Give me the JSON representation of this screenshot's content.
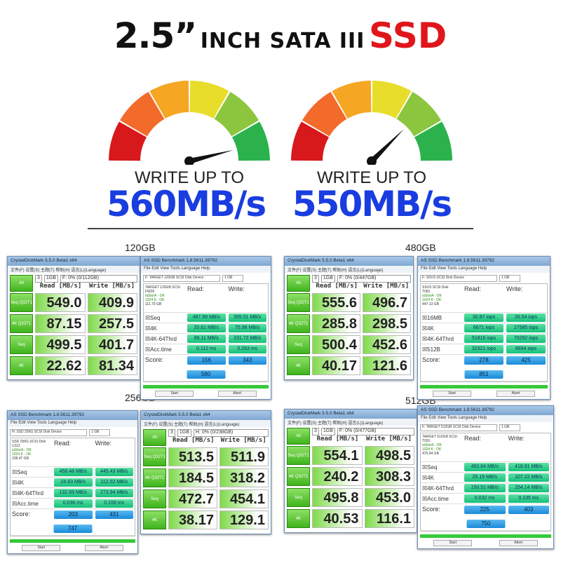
{
  "headline": {
    "size": "2.5”",
    "inch": "INCH SATA III",
    "ssd": "SSD"
  },
  "colors": {
    "accent_red": "#e0161b",
    "speed_blue": "#1a3de0",
    "gauge": [
      "#d7191c",
      "#f26b2a",
      "#f5a623",
      "#e8dd2a",
      "#8cc63f",
      "#2bb24c"
    ]
  },
  "gauges": [
    {
      "label": "WRITE UP TO",
      "speed": "560MB/s",
      "needle_level": 0.92
    },
    {
      "label": "WRITE UP TO",
      "speed": "550MB/s",
      "needle_level": 0.75
    }
  ],
  "captions": [
    "120GB",
    "480GB",
    "256GB",
    "512GB"
  ],
  "cdm": [
    {
      "title": "CrystalDiskMark 5.5.0 Beta1 x64",
      "menu": "文件(F)  设置(S)  主题(T)  帮助(H)  语言(L)(Language)",
      "all": "All",
      "count": "3",
      "size": "1GB",
      "drive": "F: 0% (0/112GB)",
      "read_h": "Read [MB/s]",
      "write_h": "Write [MB/s]",
      "rows": [
        [
          "Seq Q32T1",
          "549.0",
          "409.9"
        ],
        [
          "4K Q32T1",
          "87.15",
          "257.5"
        ],
        [
          "Seq",
          "499.5",
          "401.7"
        ],
        [
          "4K",
          "22.62",
          "81.34"
        ]
      ]
    },
    {
      "title": "CrystalDiskMark 5.5.0 Beta1 x64",
      "menu": "文件(F)  设置(S)  主题(T)  帮助(H)  语言(L)(Language)",
      "all": "All",
      "count": "3",
      "size": "1GB",
      "drive": "F: 0% (0/447GB)",
      "read_h": "Read [MB/s]",
      "write_h": "Write [MB/s]",
      "rows": [
        [
          "Seq Q32T1",
          "555.6",
          "496.7"
        ],
        [
          "4K Q32T1",
          "285.8",
          "298.5"
        ],
        [
          "Seq",
          "500.4",
          "452.6"
        ],
        [
          "4K",
          "40.17",
          "121.6"
        ]
      ]
    },
    {
      "title": "CrystalDiskMark 5.5.0 Beta1 x64",
      "menu": "文件(F)  设置(S)  主题(T)  帮助(H)  语言(L)(Language)",
      "all": "All",
      "count": "3",
      "size": "1GB",
      "drive": "H: 0% (0/238GB)",
      "read_h": "Read [MB/s]",
      "write_h": "Write [MB/s]",
      "rows": [
        [
          "Seq Q32T1",
          "513.5",
          "511.9"
        ],
        [
          "4K Q32T1",
          "184.5",
          "318.2"
        ],
        [
          "Seq",
          "472.7",
          "454.1"
        ],
        [
          "4K",
          "38.17",
          "129.1"
        ]
      ]
    },
    {
      "title": "CrystalDiskMark 5.5.0 Beta1 x64",
      "menu": "文件(F)  设置(S)  主题(T)  帮助(H)  语言(L)(Language)",
      "all": "All",
      "count": "3",
      "size": "1GB",
      "drive": "F: 0% (0/477GB)",
      "read_h": "Read [MB/s]",
      "write_h": "Write [MB/s]",
      "rows": [
        [
          "Seq Q32T1",
          "554.1",
          "498.5"
        ],
        [
          "4K Q32T1",
          "240.2",
          "308.3"
        ],
        [
          "Seq",
          "495.8",
          "453.0"
        ],
        [
          "4K",
          "40.53",
          "116.1"
        ]
      ]
    }
  ],
  "as": [
    {
      "title": "AS SSD Benchmark 1.8.5611.39792",
      "menu": "File  Edit  View  Tools  Language  Help",
      "drive": "F: TARGET 120GB SCSI Disk Device",
      "size": "1 GB",
      "info": [
        "TARGET 120GB SCSI",
        "FW20",
        "iaStorA - OK",
        "1024 K - OK",
        "111.79 GB"
      ],
      "read_h": "Read:",
      "write_h": "Write:",
      "rows": [
        [
          "Seq",
          "487.99 MB/s",
          "355.51 MB/s"
        ],
        [
          "4K",
          "20.61 MB/s",
          "75.98 MB/s"
        ],
        [
          "4K-64Thrd",
          "86.11 MB/s",
          "231.72 MB/s"
        ],
        [
          "Acc.time",
          "0.112 ms",
          "0.263 ms"
        ]
      ],
      "score_label": "Score:",
      "score_read": "156",
      "score_write": "343",
      "score_total": "580",
      "start": "Start",
      "abort": "Abort"
    },
    {
      "title": "AS SSD Benchmark 1.8.5611.39792",
      "menu": "File  Edit  View  Tools  Language  Help",
      "drive": "F: SSVS SCSI Disk Device",
      "size": "1 GB",
      "info": [
        "SSVS SCSI Disk",
        "T081",
        "iaStorA - OK",
        "1024 K - OK",
        "447.13 GB"
      ],
      "read_h": "Read:",
      "write_h": "Write:",
      "rows": [
        [
          "16MB",
          "30.87 iops",
          "26.54 iops"
        ],
        [
          "4K",
          "6671 iops",
          "27585 iops"
        ],
        [
          "4K-64Thrd",
          "51816 iops",
          "70292 iops"
        ],
        [
          "512B",
          "32321 iops",
          "6694 iops"
        ]
      ],
      "score_label": "Score:",
      "score_read": "278",
      "score_write": "425",
      "score_total": "851",
      "start": "Start",
      "abort": "Abort"
    },
    {
      "title": "AS SSD Benchmark 1.8.5611.39792",
      "menu": "File  Edit  View  Tools  Language  Help",
      "drive": "H: SSD 256G SCSI Disk Device",
      "size": "1 GB",
      "info": [
        "SSD 256G SCSI Disk",
        "U112",
        "iaStorA - OK",
        "1024 K - OK",
        "238.47 GB"
      ],
      "read_h": "Read:",
      "write_h": "Write:",
      "rows": [
        [
          "Seq",
          "458.48 MB/s",
          "445.43 MB/s"
        ],
        [
          "4K",
          "24.63 MB/s",
          "112.02 MB/s"
        ],
        [
          "4K-64Thrd",
          "132.69 MB/s",
          "273.94 MB/s"
        ],
        [
          "Acc.time",
          "0.036 ms",
          "0.159 ms"
        ]
      ],
      "score_label": "Score:",
      "score_read": "203",
      "score_write": "431",
      "score_total": "747",
      "start": "Start",
      "abort": "Abort"
    },
    {
      "title": "AS SSD Benchmark 1.8.5611.39792",
      "menu": "File  Edit  View  Tools  Language  Help",
      "drive": "F: TARGET 512GB SCSI Disk Device",
      "size": "1 GB",
      "info": [
        "TARGET 512GB SCSI",
        "T091",
        "iaStorA - OK",
        "1024 K - OK",
        "476.94 GB"
      ],
      "read_h": "Read:",
      "write_h": "Write:",
      "rows": [
        [
          "Seq",
          "492.64 MB/s",
          "418.91 MB/s"
        ],
        [
          "4K",
          "25.19 MB/s",
          "107.22 MB/s"
        ],
        [
          "4K-64Thrd",
          "150.51 MB/s",
          "254.14 MB/s"
        ],
        [
          "Acc.time",
          "0.032 ms",
          "0.135 ms"
        ]
      ],
      "score_label": "Score:",
      "score_read": "225",
      "score_write": "403",
      "score_total": "750",
      "start": "Start",
      "abort": "Abort"
    }
  ]
}
